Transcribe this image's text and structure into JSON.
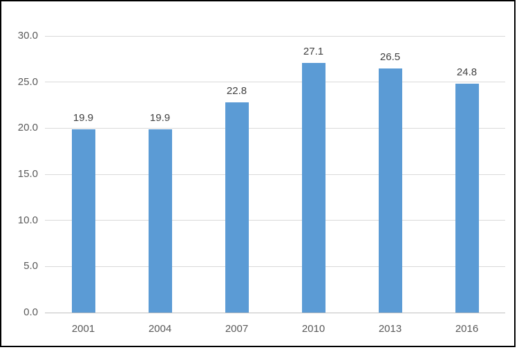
{
  "chart_data": {
    "type": "bar",
    "title": "",
    "xlabel": "",
    "ylabel": "",
    "categories": [
      "2001",
      "2004",
      "2007",
      "2010",
      "2013",
      "2016"
    ],
    "values": [
      19.9,
      19.9,
      22.8,
      27.1,
      26.5,
      24.8
    ],
    "value_labels": [
      "19.9",
      "19.9",
      "22.8",
      "27.1",
      "26.5",
      "24.8"
    ],
    "ylim": [
      0,
      30
    ],
    "ytick_step": 5,
    "ytick_labels": [
      "0.0",
      "5.0",
      "10.0",
      "15.0",
      "20.0",
      "25.0",
      "30.0"
    ],
    "grid": true,
    "legend": "none",
    "colors": {
      "bar": "#5B9BD5",
      "gridline": "#D9D9D9",
      "axis_line": "#BFBFBF",
      "tick_label": "#595959",
      "data_label": "#404040",
      "frame_border": "#000000",
      "background": "#FFFFFF"
    }
  }
}
